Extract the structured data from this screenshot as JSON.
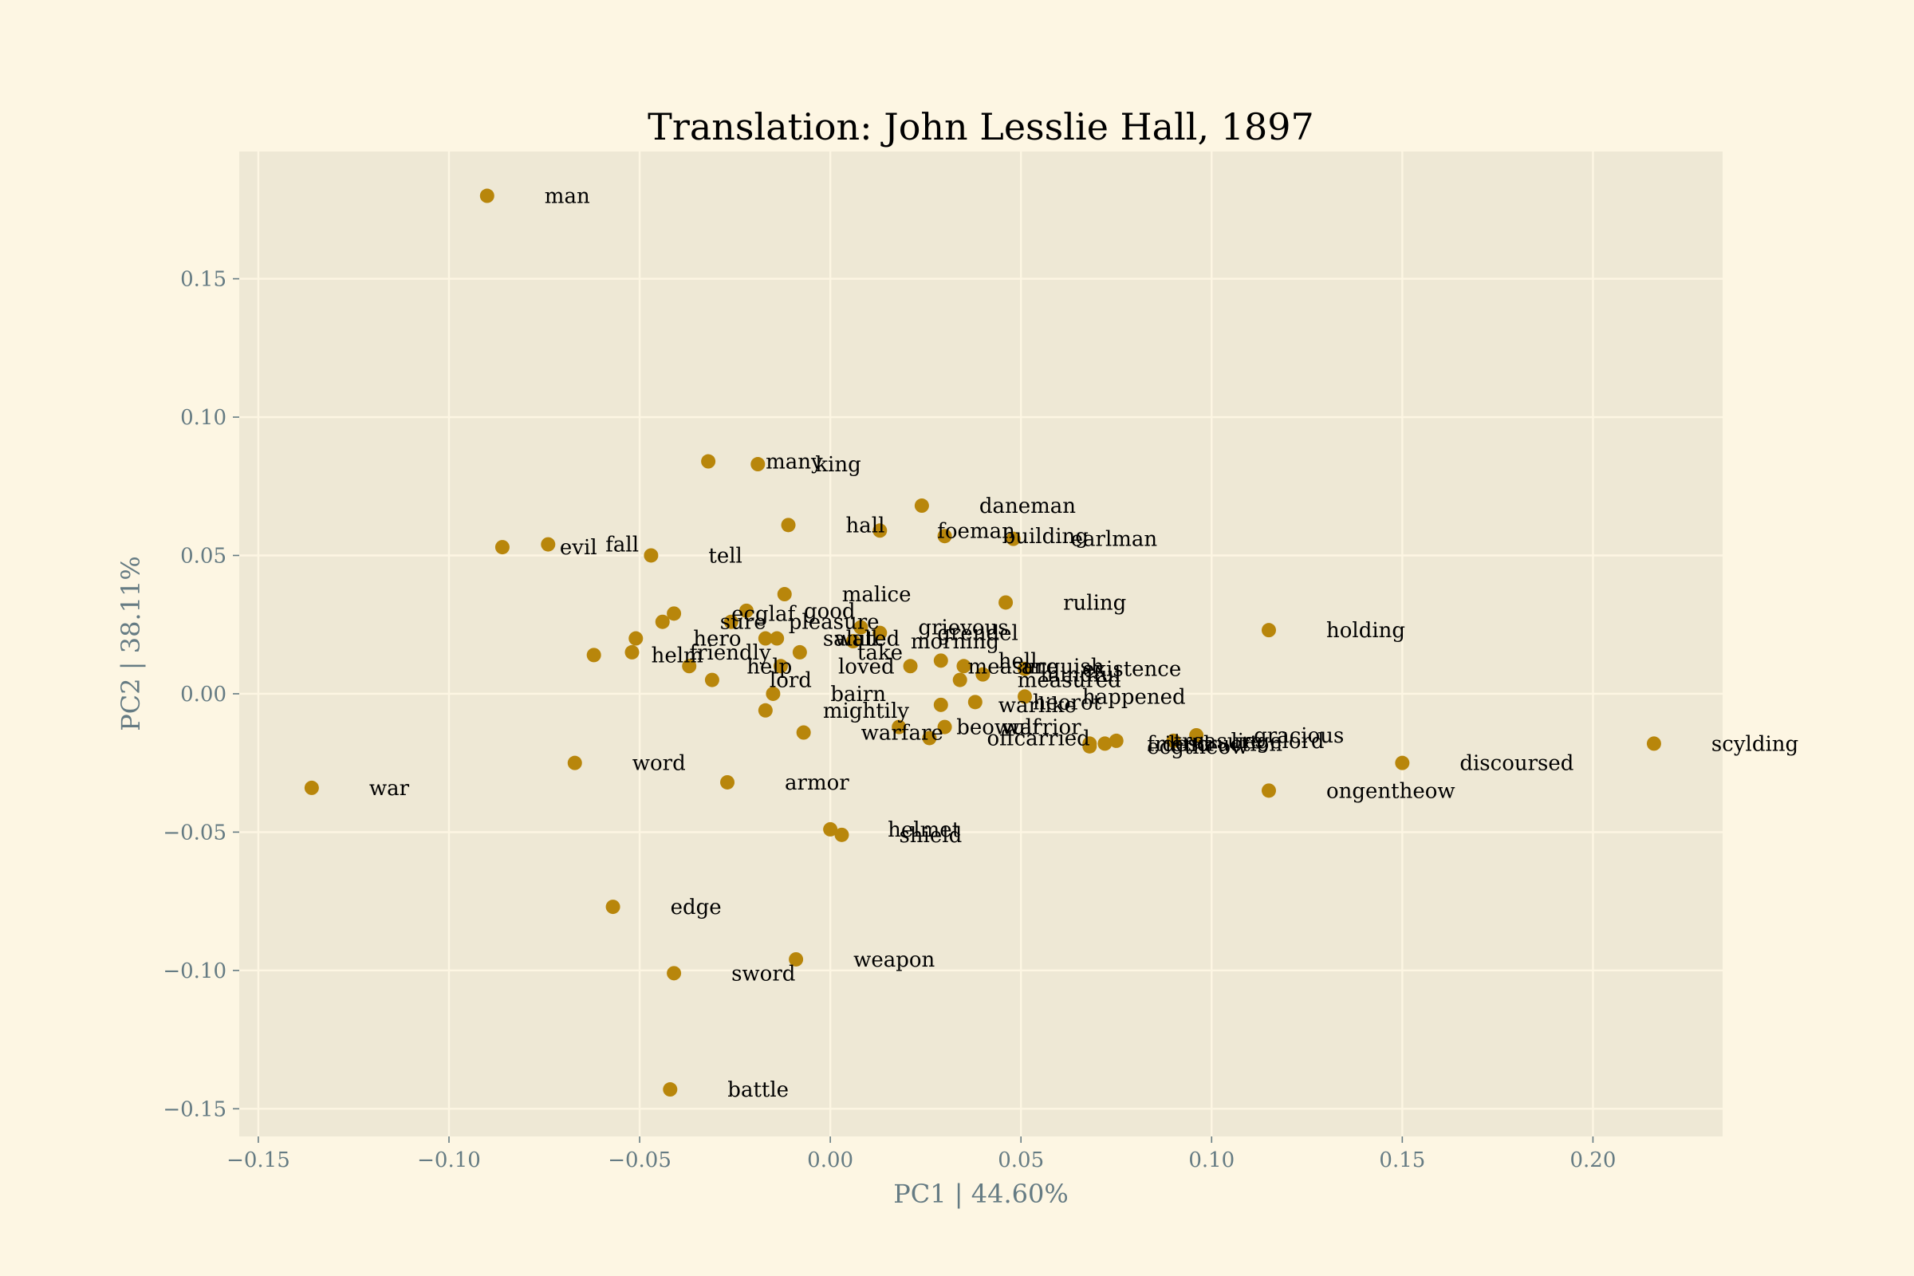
{
  "chart_data": {
    "type": "scatter",
    "title": "Translation: John Lesslie Hall, 1897",
    "xlabel": "PC1 | 44.60%",
    "ylabel": "PC2 | 38.11%",
    "xlim": [
      -0.155,
      0.234
    ],
    "ylim": [
      -0.16,
      0.196
    ],
    "xticks": [
      -0.15,
      -0.1,
      -0.05,
      0.0,
      0.05,
      0.1,
      0.15,
      0.2
    ],
    "xtick_labels": [
      "−0.15",
      "−0.10",
      "−0.05",
      "0.00",
      "0.05",
      "0.10",
      "0.15",
      "0.20"
    ],
    "yticks": [
      -0.15,
      -0.1,
      -0.05,
      0.0,
      0.05,
      0.1,
      0.15
    ],
    "ytick_labels": [
      "−0.15",
      "−0.10",
      "−0.05",
      "0.00",
      "0.05",
      "0.10",
      "0.15"
    ],
    "grid": true,
    "colors": {
      "point": "#b8860b",
      "plot_bg": "#eee8d5",
      "page_bg": "#fdf6e3",
      "grid": "#fdf6e3",
      "axis_text": "#657b83"
    },
    "points": [
      {
        "label": "man",
        "x": -0.09,
        "y": 0.18
      },
      {
        "label": "many",
        "x": -0.032,
        "y": 0.084
      },
      {
        "label": "king",
        "x": -0.019,
        "y": 0.083
      },
      {
        "label": "daneman",
        "x": 0.024,
        "y": 0.068
      },
      {
        "label": "hall",
        "x": -0.011,
        "y": 0.061
      },
      {
        "label": "foeman",
        "x": 0.013,
        "y": 0.059
      },
      {
        "label": "building",
        "x": 0.03,
        "y": 0.057
      },
      {
        "label": "earlman",
        "x": 0.048,
        "y": 0.056
      },
      {
        "label": "evil",
        "x": -0.086,
        "y": 0.053
      },
      {
        "label": "fall",
        "x": -0.074,
        "y": 0.054
      },
      {
        "label": "tell",
        "x": -0.047,
        "y": 0.05
      },
      {
        "label": "malice",
        "x": -0.012,
        "y": 0.036
      },
      {
        "label": "ruling",
        "x": 0.046,
        "y": 0.033
      },
      {
        "label": "holding",
        "x": 0.115,
        "y": 0.023
      },
      {
        "label": "ecglaf",
        "x": -0.041,
        "y": 0.029
      },
      {
        "label": "good",
        "x": -0.022,
        "y": 0.03
      },
      {
        "label": "pleasure",
        "x": -0.026,
        "y": 0.026
      },
      {
        "label": "grievous",
        "x": 0.008,
        "y": 0.024
      },
      {
        "label": "grendel",
        "x": 0.013,
        "y": 0.022
      },
      {
        "label": "sure",
        "x": -0.044,
        "y": 0.026
      },
      {
        "label": "hero",
        "x": -0.051,
        "y": 0.02
      },
      {
        "label": "saluted",
        "x": -0.017,
        "y": 0.02
      },
      {
        "label": "morning",
        "x": 0.006,
        "y": 0.019
      },
      {
        "label": "wall",
        "x": -0.014,
        "y": 0.02
      },
      {
        "label": "helm",
        "x": -0.062,
        "y": 0.014
      },
      {
        "label": "friendly",
        "x": -0.052,
        "y": 0.015
      },
      {
        "label": "anguish",
        "x": 0.035,
        "y": 0.01
      },
      {
        "label": "existence",
        "x": 0.051,
        "y": 0.009
      },
      {
        "label": "take",
        "x": -0.008,
        "y": 0.015
      },
      {
        "label": "loved",
        "x": -0.013,
        "y": 0.01
      },
      {
        "label": "measure",
        "x": 0.021,
        "y": 0.01
      },
      {
        "label": "help",
        "x": -0.037,
        "y": 0.01
      },
      {
        "label": "lord",
        "x": -0.031,
        "y": 0.005
      },
      {
        "label": "bairn",
        "x": -0.015,
        "y": 0.0
      },
      {
        "label": "hell",
        "x": 0.029,
        "y": 0.012
      },
      {
        "label": "mindful",
        "x": 0.04,
        "y": 0.007
      },
      {
        "label": "happened",
        "x": 0.051,
        "y": -0.001
      },
      {
        "label": "mightily",
        "x": -0.017,
        "y": -0.006
      },
      {
        "label": "measured",
        "x": 0.034,
        "y": 0.005
      },
      {
        "label": "warlike",
        "x": 0.029,
        "y": -0.004
      },
      {
        "label": "heorot",
        "x": 0.038,
        "y": -0.003
      },
      {
        "label": "friend",
        "x": 0.068,
        "y": -0.018
      },
      {
        "label": "destruction",
        "x": 0.072,
        "y": -0.018
      },
      {
        "label": "treasure",
        "x": 0.075,
        "y": -0.017
      },
      {
        "label": "gracious",
        "x": 0.096,
        "y": -0.015
      },
      {
        "label": "scylding",
        "x": 0.216,
        "y": -0.018
      },
      {
        "label": "warfare",
        "x": -0.007,
        "y": -0.014
      },
      {
        "label": "beowulf",
        "x": 0.018,
        "y": -0.012
      },
      {
        "label": "offcarried",
        "x": 0.026,
        "y": -0.016
      },
      {
        "label": "warrior",
        "x": 0.03,
        "y": -0.012
      },
      {
        "label": "ecgtheow",
        "x": 0.068,
        "y": -0.019
      },
      {
        "label": "liegelord",
        "x": 0.09,
        "y": -0.017
      },
      {
        "label": "discoursed",
        "x": 0.15,
        "y": -0.025
      },
      {
        "label": "ongentheow",
        "x": 0.115,
        "y": -0.035
      },
      {
        "label": "word",
        "x": -0.067,
        "y": -0.025
      },
      {
        "label": "armor",
        "x": -0.027,
        "y": -0.032
      },
      {
        "label": "war",
        "x": -0.136,
        "y": -0.034
      },
      {
        "label": "helmet",
        "x": 0.0,
        "y": -0.049
      },
      {
        "label": "shield",
        "x": 0.003,
        "y": -0.051
      },
      {
        "label": "edge",
        "x": -0.057,
        "y": -0.077
      },
      {
        "label": "weapon",
        "x": -0.009,
        "y": -0.096
      },
      {
        "label": "sword",
        "x": -0.041,
        "y": -0.101
      },
      {
        "label": "battle",
        "x": -0.042,
        "y": -0.143
      }
    ]
  }
}
